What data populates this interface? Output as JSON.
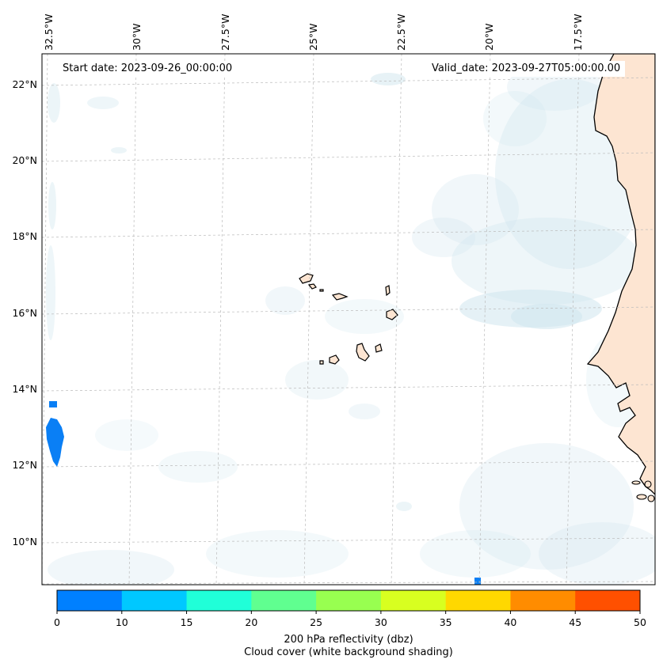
{
  "map": {
    "start_date": "Start date: 2023-09-26_00:00:00",
    "valid_date": "Valid_date: 2023-09-27T05:00:00.00",
    "lon_labels": [
      "32.5°W",
      "30°W",
      "27.5°W",
      "25°W",
      "22.5°W",
      "20°W",
      "17.5°W"
    ],
    "lat_labels": [
      "22°N",
      "20°N",
      "18°N",
      "16°N",
      "14°N",
      "12°N",
      "10°N"
    ],
    "land_color": "#fde5d2",
    "cloud_color": "#cfe6ee",
    "reflectivity_color": "#0a7ff5"
  },
  "colorbar": {
    "ticks": [
      "0",
      "10",
      "15",
      "20",
      "25",
      "30",
      "35",
      "40",
      "45",
      "50"
    ],
    "colors": [
      "#0080ff",
      "#00c8ff",
      "#20ffd8",
      "#60ff90",
      "#98ff50",
      "#d8ff20",
      "#ffd800",
      "#ff8c00",
      "#ff5000"
    ],
    "label_line1": "200 hPa reflectivity (dbz)",
    "label_line2": "Cloud cover (white background shading)"
  }
}
